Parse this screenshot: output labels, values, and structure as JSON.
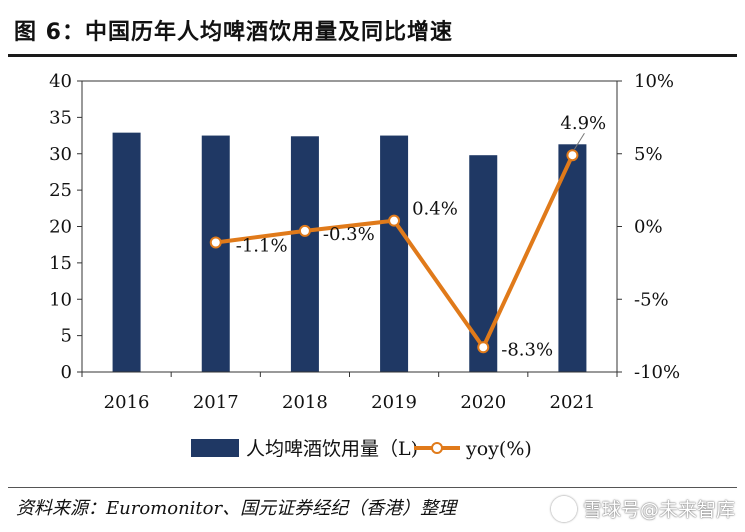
{
  "title": "图 6：中国历年人均啤酒饮用量及同比增速",
  "source": "资料来源：Euromonitor、国元证券经纪（香港）整理",
  "watermark": "雪球号@未来智库",
  "colors": {
    "bar": "#1f3864",
    "line": "#e07a1a",
    "text": "#111111"
  },
  "chart_data": {
    "type": "bar+line",
    "categories": [
      "2016",
      "2017",
      "2018",
      "2019",
      "2020",
      "2021"
    ],
    "series": [
      {
        "name": "人均啤酒饮用量（L)",
        "type": "bar",
        "axis": "left",
        "values": [
          32.9,
          32.5,
          32.4,
          32.5,
          29.8,
          31.3
        ]
      },
      {
        "name": "yoy(%)",
        "type": "line",
        "axis": "right",
        "values": [
          null,
          -1.1,
          -0.3,
          0.4,
          -8.3,
          4.9
        ],
        "labels": [
          "",
          "-1.1%",
          "-0.3%",
          "0.4%",
          "-8.3%",
          "4.9%"
        ]
      }
    ],
    "left_axis": {
      "min": 0,
      "max": 40,
      "step": 5,
      "ticks": [
        "0",
        "5",
        "10",
        "15",
        "20",
        "25",
        "30",
        "35",
        "40"
      ]
    },
    "right_axis": {
      "min": -10,
      "max": 10,
      "step": 5,
      "ticks": [
        "-10%",
        "-5%",
        "0%",
        "5%",
        "10%"
      ]
    },
    "legend": {
      "position": "bottom",
      "items": [
        "人均啤酒饮用量（L)",
        "yoy(%)"
      ]
    }
  }
}
